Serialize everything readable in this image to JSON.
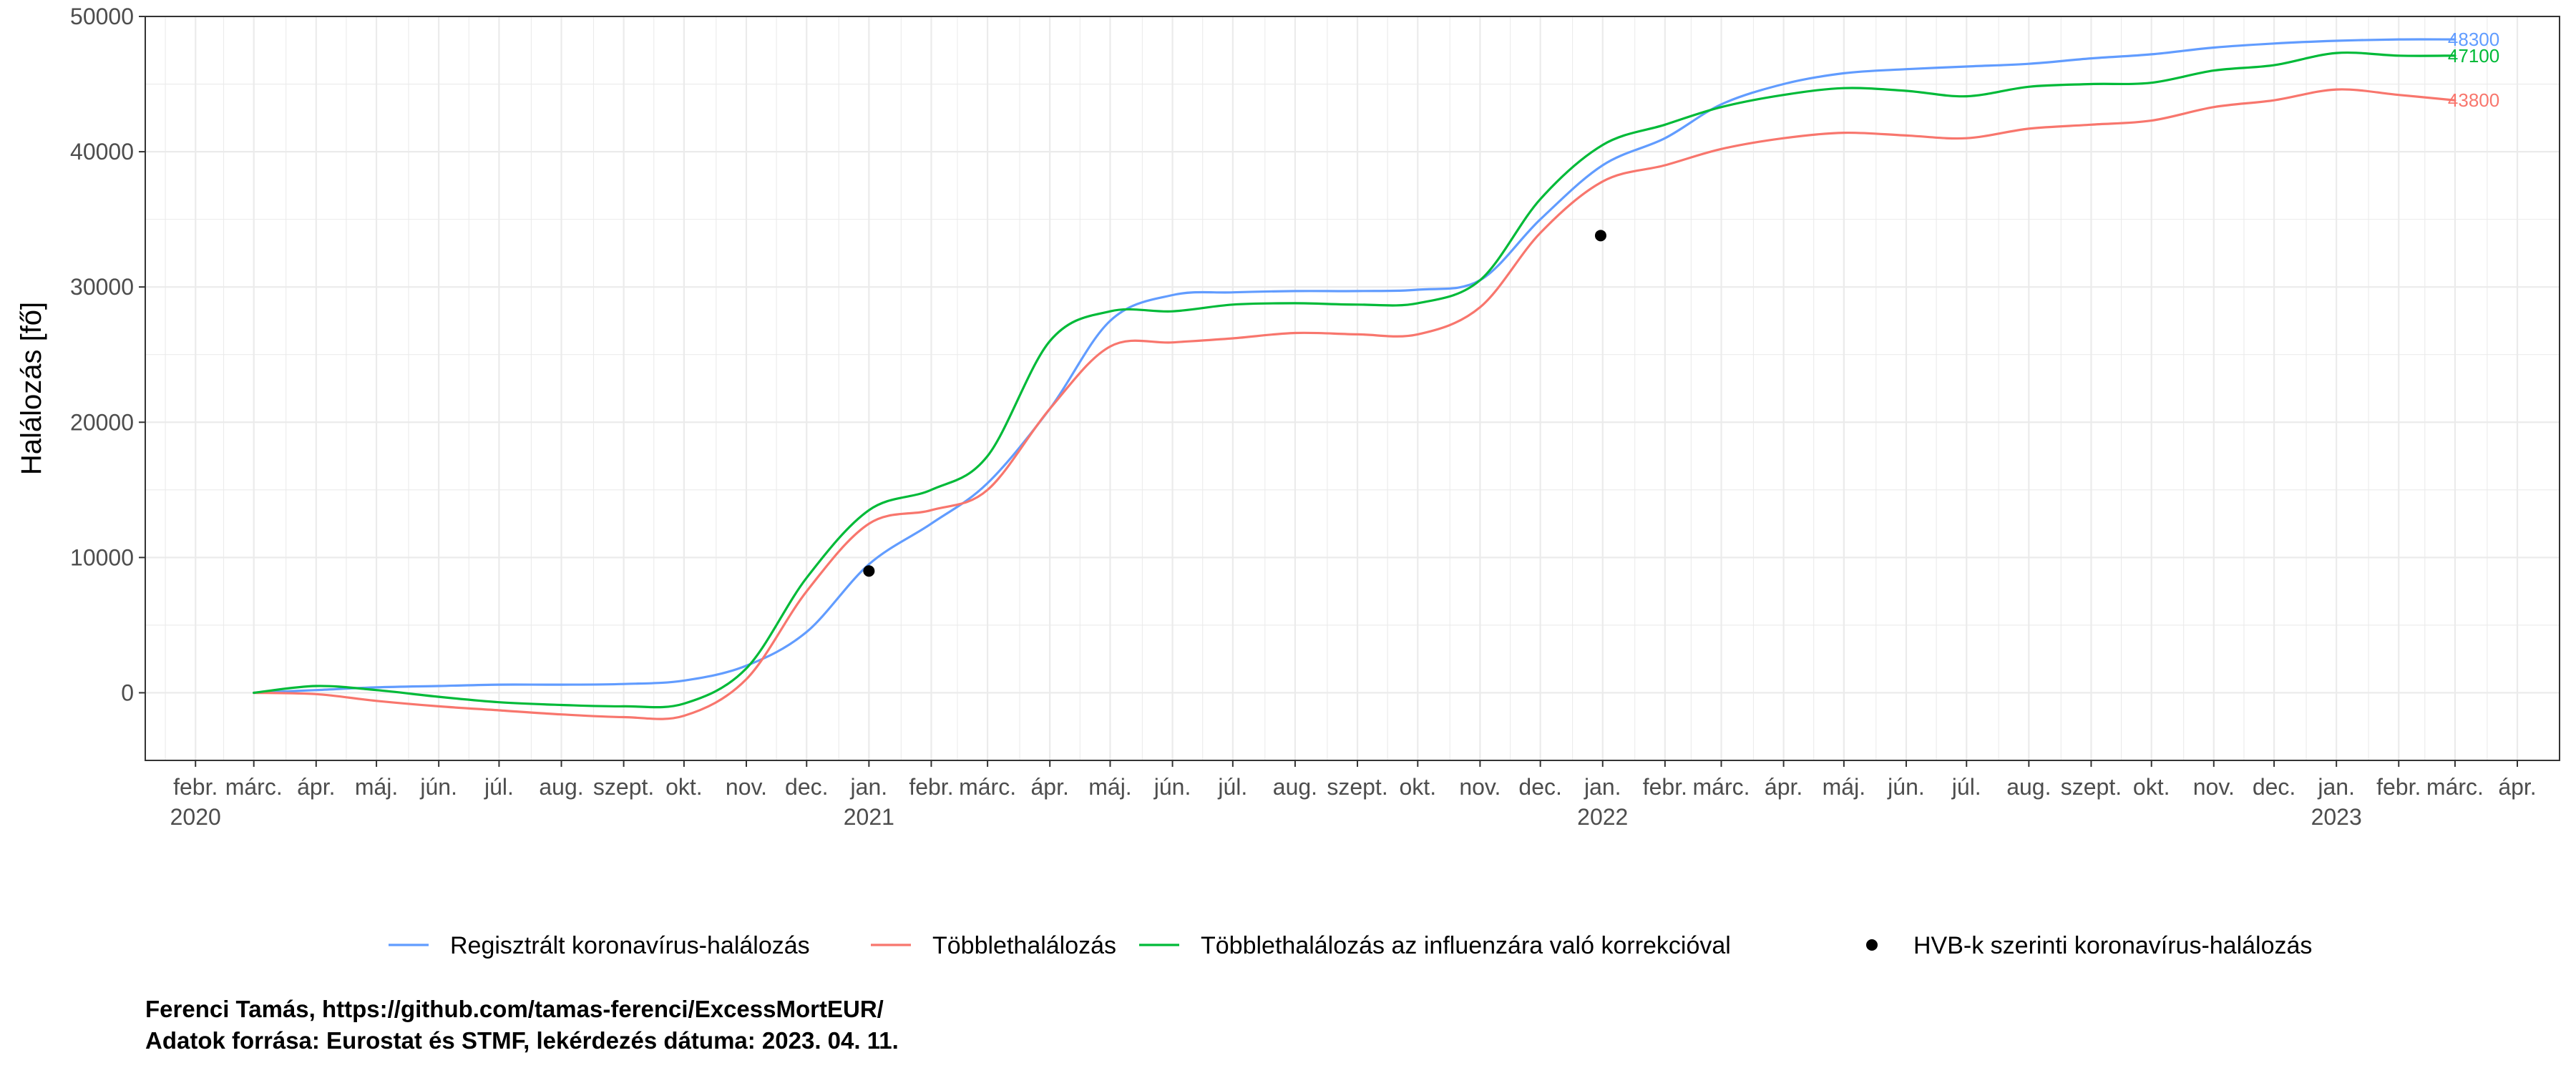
{
  "chart_data": {
    "type": "line",
    "ylabel": "Halálozás [fő]",
    "ylim": [
      -5000,
      50000
    ],
    "yticks": [
      0,
      10000,
      20000,
      30000,
      40000,
      50000
    ],
    "xlim": [
      "2020-01-07",
      "2023-04-22"
    ],
    "grid": true,
    "legend_position": "bottom",
    "x_month_labels": [
      {
        "date": "2020-02-01",
        "label": "febr."
      },
      {
        "date": "2020-03-01",
        "label": "márc."
      },
      {
        "date": "2020-04-01",
        "label": "ápr."
      },
      {
        "date": "2020-05-01",
        "label": "máj."
      },
      {
        "date": "2020-06-01",
        "label": "jún."
      },
      {
        "date": "2020-07-01",
        "label": "júl."
      },
      {
        "date": "2020-08-01",
        "label": "aug."
      },
      {
        "date": "2020-09-01",
        "label": "szept."
      },
      {
        "date": "2020-10-01",
        "label": "okt."
      },
      {
        "date": "2020-11-01",
        "label": "nov."
      },
      {
        "date": "2020-12-01",
        "label": "dec."
      },
      {
        "date": "2021-01-01",
        "label": "jan."
      },
      {
        "date": "2021-02-01",
        "label": "febr."
      },
      {
        "date": "2021-03-01",
        "label": "márc."
      },
      {
        "date": "2021-04-01",
        "label": "ápr."
      },
      {
        "date": "2021-05-01",
        "label": "máj."
      },
      {
        "date": "2021-06-01",
        "label": "jún."
      },
      {
        "date": "2021-07-01",
        "label": "júl."
      },
      {
        "date": "2021-08-01",
        "label": "aug."
      },
      {
        "date": "2021-09-01",
        "label": "szept."
      },
      {
        "date": "2021-10-01",
        "label": "okt."
      },
      {
        "date": "2021-11-01",
        "label": "nov."
      },
      {
        "date": "2021-12-01",
        "label": "dec."
      },
      {
        "date": "2022-01-01",
        "label": "jan."
      },
      {
        "date": "2022-02-01",
        "label": "febr."
      },
      {
        "date": "2022-03-01",
        "label": "márc."
      },
      {
        "date": "2022-04-01",
        "label": "ápr."
      },
      {
        "date": "2022-05-01",
        "label": "máj."
      },
      {
        "date": "2022-06-01",
        "label": "jún."
      },
      {
        "date": "2022-07-01",
        "label": "júl."
      },
      {
        "date": "2022-08-01",
        "label": "aug."
      },
      {
        "date": "2022-09-01",
        "label": "szept."
      },
      {
        "date": "2022-10-01",
        "label": "okt."
      },
      {
        "date": "2022-11-01",
        "label": "nov."
      },
      {
        "date": "2022-12-01",
        "label": "dec."
      },
      {
        "date": "2023-01-01",
        "label": "jan."
      },
      {
        "date": "2023-02-01",
        "label": "febr."
      },
      {
        "date": "2023-03-01",
        "label": "márc."
      },
      {
        "date": "2023-04-01",
        "label": "ápr."
      }
    ],
    "x_year_labels": [
      {
        "date": "2020-02-01",
        "label": "2020"
      },
      {
        "date": "2021-01-01",
        "label": "2021"
      },
      {
        "date": "2022-01-01",
        "label": "2022"
      },
      {
        "date": "2023-01-01",
        "label": "2023"
      }
    ],
    "series": [
      {
        "name": "Regisztrált koronavírus-halálozás",
        "color": "#619CFF",
        "end_label": "48300",
        "points": [
          [
            "2020-03-01",
            0
          ],
          [
            "2020-04-01",
            200
          ],
          [
            "2020-05-01",
            400
          ],
          [
            "2020-06-01",
            500
          ],
          [
            "2020-07-01",
            600
          ],
          [
            "2020-08-01",
            600
          ],
          [
            "2020-09-01",
            650
          ],
          [
            "2020-10-01",
            900
          ],
          [
            "2020-11-01",
            2000
          ],
          [
            "2020-12-01",
            4500
          ],
          [
            "2021-01-01",
            9500
          ],
          [
            "2021-02-01",
            12500
          ],
          [
            "2021-03-01",
            15500
          ],
          [
            "2021-04-01",
            21000
          ],
          [
            "2021-05-01",
            27500
          ],
          [
            "2021-06-01",
            29400
          ],
          [
            "2021-07-01",
            29600
          ],
          [
            "2021-08-01",
            29700
          ],
          [
            "2021-09-01",
            29700
          ],
          [
            "2021-10-01",
            29800
          ],
          [
            "2021-11-01",
            30500
          ],
          [
            "2021-12-01",
            35000
          ],
          [
            "2022-01-01",
            39000
          ],
          [
            "2022-02-01",
            41000
          ],
          [
            "2022-03-01",
            43500
          ],
          [
            "2022-04-01",
            45000
          ],
          [
            "2022-05-01",
            45800
          ],
          [
            "2022-06-01",
            46100
          ],
          [
            "2022-07-01",
            46300
          ],
          [
            "2022-08-01",
            46500
          ],
          [
            "2022-09-01",
            46900
          ],
          [
            "2022-10-01",
            47200
          ],
          [
            "2022-11-01",
            47700
          ],
          [
            "2022-12-01",
            48000
          ],
          [
            "2023-01-01",
            48200
          ],
          [
            "2023-02-01",
            48300
          ],
          [
            "2023-03-01",
            48300
          ]
        ]
      },
      {
        "name": "Többlethalálozás",
        "color": "#F8766D",
        "end_label": "43800",
        "points": [
          [
            "2020-03-01",
            0
          ],
          [
            "2020-04-01",
            -100
          ],
          [
            "2020-05-01",
            -600
          ],
          [
            "2020-06-01",
            -1000
          ],
          [
            "2020-07-01",
            -1300
          ],
          [
            "2020-08-01",
            -1600
          ],
          [
            "2020-09-01",
            -1800
          ],
          [
            "2020-10-01",
            -1700
          ],
          [
            "2020-11-01",
            1000
          ],
          [
            "2020-12-01",
            7500
          ],
          [
            "2021-01-01",
            12500
          ],
          [
            "2021-02-01",
            13500
          ],
          [
            "2021-03-01",
            15000
          ],
          [
            "2021-04-01",
            21000
          ],
          [
            "2021-05-01",
            25600
          ],
          [
            "2021-06-01",
            25900
          ],
          [
            "2021-07-01",
            26200
          ],
          [
            "2021-08-01",
            26600
          ],
          [
            "2021-09-01",
            26500
          ],
          [
            "2021-10-01",
            26500
          ],
          [
            "2021-11-01",
            28500
          ],
          [
            "2021-12-01",
            34000
          ],
          [
            "2022-01-01",
            37800
          ],
          [
            "2022-02-01",
            39000
          ],
          [
            "2022-03-01",
            40200
          ],
          [
            "2022-04-01",
            41000
          ],
          [
            "2022-05-01",
            41400
          ],
          [
            "2022-06-01",
            41200
          ],
          [
            "2022-07-01",
            41000
          ],
          [
            "2022-08-01",
            41700
          ],
          [
            "2022-09-01",
            42000
          ],
          [
            "2022-10-01",
            42300
          ],
          [
            "2022-11-01",
            43300
          ],
          [
            "2022-12-01",
            43800
          ],
          [
            "2023-01-01",
            44600
          ],
          [
            "2023-02-01",
            44200
          ],
          [
            "2023-03-01",
            43800
          ]
        ]
      },
      {
        "name": "Többlethalálozás az influenzára való korrekcióval",
        "color": "#00BA38",
        "end_label": "47100",
        "points": [
          [
            "2020-03-01",
            0
          ],
          [
            "2020-04-01",
            500
          ],
          [
            "2020-05-01",
            200
          ],
          [
            "2020-06-01",
            -300
          ],
          [
            "2020-07-01",
            -700
          ],
          [
            "2020-08-01",
            -900
          ],
          [
            "2020-09-01",
            -1000
          ],
          [
            "2020-10-01",
            -800
          ],
          [
            "2020-11-01",
            1800
          ],
          [
            "2020-12-01",
            8500
          ],
          [
            "2021-01-01",
            13500
          ],
          [
            "2021-02-01",
            15000
          ],
          [
            "2021-03-01",
            17500
          ],
          [
            "2021-04-01",
            26000
          ],
          [
            "2021-05-01",
            28200
          ],
          [
            "2021-06-01",
            28200
          ],
          [
            "2021-07-01",
            28700
          ],
          [
            "2021-08-01",
            28800
          ],
          [
            "2021-09-01",
            28700
          ],
          [
            "2021-10-01",
            28800
          ],
          [
            "2021-11-01",
            30500
          ],
          [
            "2021-12-01",
            36500
          ],
          [
            "2022-01-01",
            40500
          ],
          [
            "2022-02-01",
            42000
          ],
          [
            "2022-03-01",
            43300
          ],
          [
            "2022-04-01",
            44200
          ],
          [
            "2022-05-01",
            44700
          ],
          [
            "2022-06-01",
            44500
          ],
          [
            "2022-07-01",
            44100
          ],
          [
            "2022-08-01",
            44800
          ],
          [
            "2022-09-01",
            45000
          ],
          [
            "2022-10-01",
            45100
          ],
          [
            "2022-11-01",
            46000
          ],
          [
            "2022-12-01",
            46400
          ],
          [
            "2023-01-01",
            47300
          ],
          [
            "2023-02-01",
            47100
          ],
          [
            "2023-03-01",
            47100
          ]
        ]
      }
    ],
    "points_series": {
      "name": "HVB-k szerinti koronavírus-halálozás",
      "color": "#000000",
      "points": [
        [
          "2021-01-01",
          9000
        ],
        [
          "2021-12-31",
          33800
        ]
      ]
    }
  },
  "caption": {
    "line1": "Ferenci Tamás, https://github.com/tamas-ferenci/ExcessMortEUR/",
    "line2": "Adatok forrása: Eurostat és STMF, lekérdezés dátuma: 2023. 04. 11."
  }
}
